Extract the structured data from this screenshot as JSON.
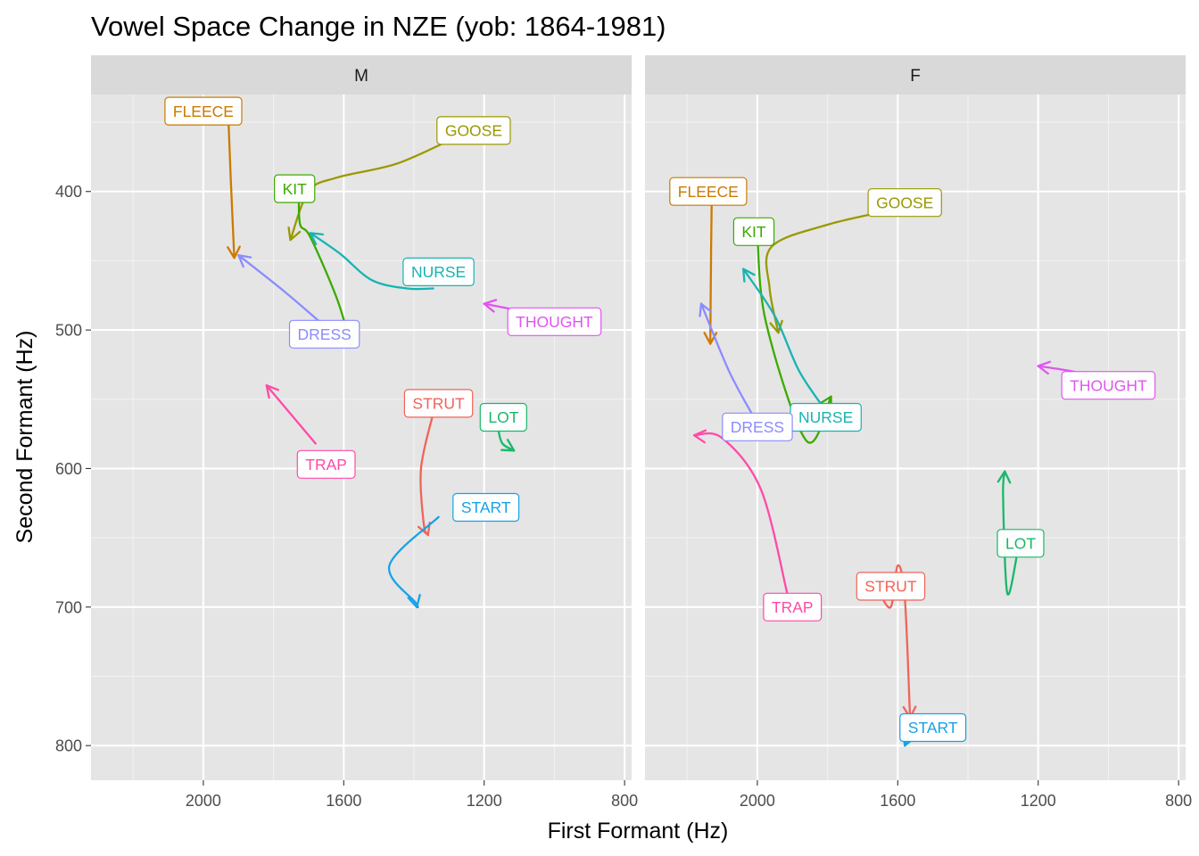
{
  "chart_data": {
    "type": "line",
    "title": "Vowel Space Change in NZE (yob: 1864-1981)",
    "xlabel": "First Formant (Hz)",
    "ylabel": "Second Formant (Hz)",
    "x_reversed": true,
    "y_reversed": true,
    "xlim": [
      2320,
      780
    ],
    "ylim": [
      330,
      825
    ],
    "x_ticks": [
      2000,
      1600,
      1200,
      800
    ],
    "y_ticks": [
      400,
      500,
      600,
      700,
      800
    ],
    "grid": true,
    "colors": {
      "DRESS": "#8b8cff",
      "FLEECE": "#cc7a00",
      "GOOSE": "#999900",
      "KIT": "#3caa00",
      "LOT": "#18b86a",
      "NURSE": "#19b3b3",
      "START": "#18a2e6",
      "STRUT": "#f0645a",
      "THOUGHT": "#e055f0",
      "TRAP": "#ff4aa8"
    },
    "panels": [
      {
        "facet": "M",
        "series": [
          {
            "name": "FLEECE",
            "label_at": [
              2000,
              342
            ],
            "points": [
              [
                1928,
                352
              ],
              [
                1922,
                390
              ],
              [
                1912,
                448
              ]
            ]
          },
          {
            "name": "GOOSE",
            "label_at": [
              1230,
              356
            ],
            "points": [
              [
                1290,
                362
              ],
              [
                1450,
                380
              ],
              [
                1620,
                390
              ],
              [
                1700,
                400
              ],
              [
                1752,
                435
              ]
            ]
          },
          {
            "name": "KIT",
            "label_at": [
              1740,
              398
            ],
            "points": [
              [
                1728,
                405
              ],
              [
                1724,
                424
              ],
              [
                1695,
                433
              ],
              [
                1620,
                477
              ],
              [
                1578,
                512
              ]
            ]
          },
          {
            "name": "NURSE",
            "label_at": [
              1330,
              458
            ],
            "points": [
              [
                1345,
                470
              ],
              [
                1420,
                470
              ],
              [
                1520,
                464
              ],
              [
                1610,
                445
              ],
              [
                1695,
                430
              ]
            ]
          },
          {
            "name": "DRESS",
            "label_at": [
              1655,
              503
            ],
            "points": [
              [
                1655,
                497
              ],
              [
                1770,
                472
              ],
              [
                1900,
                446
              ]
            ]
          },
          {
            "name": "THOUGHT",
            "label_at": [
              1000,
              494
            ],
            "points": [
              [
                1000,
                491
              ],
              [
                1100,
                486
              ],
              [
                1200,
                481
              ]
            ]
          },
          {
            "name": "TRAP",
            "label_at": [
              1650,
              597
            ],
            "points": [
              [
                1680,
                582
              ],
              [
                1760,
                558
              ],
              [
                1820,
                540
              ]
            ]
          },
          {
            "name": "STRUT",
            "label_at": [
              1330,
              553
            ],
            "points": [
              [
                1345,
                560
              ],
              [
                1380,
                600
              ],
              [
                1372,
                640
              ],
              [
                1360,
                648
              ]
            ]
          },
          {
            "name": "LOT",
            "label_at": [
              1145,
              563
            ],
            "points": [
              [
                1160,
                572
              ],
              [
                1148,
                582
              ],
              [
                1115,
                587
              ]
            ]
          },
          {
            "name": "START",
            "label_at": [
              1195,
              628
            ],
            "points": [
              [
                1330,
                635
              ],
              [
                1470,
                670
              ],
              [
                1395,
                697
              ],
              [
                1392,
                700
              ]
            ]
          }
        ]
      },
      {
        "facet": "F",
        "series": [
          {
            "name": "FLEECE",
            "label_at": [
              2140,
              400
            ],
            "points": [
              [
                2130,
                405
              ],
              [
                2132,
                450
              ],
              [
                2134,
                510
              ]
            ]
          },
          {
            "name": "GOOSE",
            "label_at": [
              1580,
              408
            ],
            "points": [
              [
                1590,
                412
              ],
              [
                1800,
                424
              ],
              [
                1960,
                440
              ],
              [
                1965,
                470
              ],
              [
                1940,
                502
              ]
            ]
          },
          {
            "name": "KIT",
            "label_at": [
              2010,
              429
            ],
            "points": [
              [
                2000,
                432
              ],
              [
                1975,
                495
              ],
              [
                1860,
                580
              ],
              [
                1790,
                548
              ]
            ]
          },
          {
            "name": "NURSE",
            "label_at": [
              1805,
              563
            ],
            "points": [
              [
                1800,
                560
              ],
              [
                1880,
                530
              ],
              [
                1950,
                490
              ],
              [
                2040,
                456
              ]
            ]
          },
          {
            "name": "DRESS",
            "label_at": [
              2000,
              570
            ],
            "points": [
              [
                2010,
                563
              ],
              [
                2080,
                530
              ],
              [
                2160,
                481
              ]
            ]
          },
          {
            "name": "THOUGHT",
            "label_at": [
              1000,
              540
            ],
            "points": [
              [
                1000,
                536
              ],
              [
                1100,
                530
              ],
              [
                1200,
                526
              ]
            ]
          },
          {
            "name": "TRAP",
            "label_at": [
              1900,
              700
            ],
            "points": [
              [
                1915,
                690
              ],
              [
                1990,
                615
              ],
              [
                2100,
                578
              ],
              [
                2180,
                576
              ]
            ]
          },
          {
            "name": "STRUT",
            "label_at": [
              1620,
              685
            ],
            "points": [
              [
                1655,
                688
              ],
              [
                1620,
                700
              ],
              [
                1600,
                670
              ],
              [
                1580,
                693
              ],
              [
                1565,
                780
              ]
            ]
          },
          {
            "name": "LOT",
            "label_at": [
              1250,
              654
            ],
            "points": [
              [
                1260,
                662
              ],
              [
                1288,
                690
              ],
              [
                1300,
                620
              ],
              [
                1295,
                602
              ]
            ]
          },
          {
            "name": "START",
            "label_at": [
              1500,
              787
            ],
            "points": [
              [
                1560,
                792
              ],
              [
                1575,
                797
              ],
              [
                1580,
                800
              ]
            ]
          }
        ]
      }
    ]
  }
}
